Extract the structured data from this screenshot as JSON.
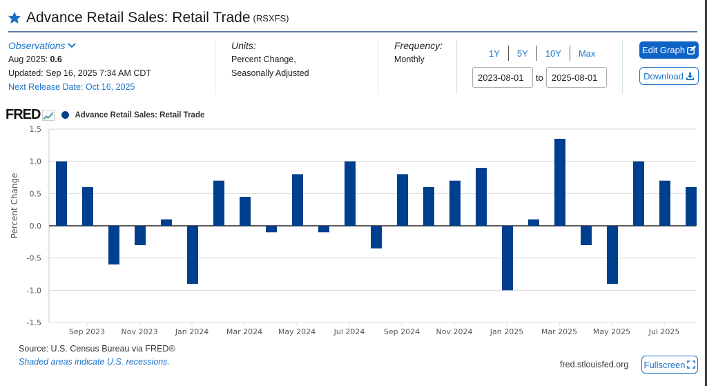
{
  "header": {
    "title": "Advance Retail Sales: Retail Trade",
    "series_id": "(RSXFS)"
  },
  "observations": {
    "title": "Observations",
    "latest_label": "Aug 2025: ",
    "latest_value": "0.6",
    "updated": "Updated: Sep 16, 2025 7:34 AM CDT",
    "next_release": "Next Release Date: Oct 16, 2025"
  },
  "units": {
    "label": "Units:",
    "line1": "Percent Change,",
    "line2": "Seasonally Adjusted"
  },
  "frequency": {
    "label": "Frequency:",
    "value": "Monthly"
  },
  "ranges": [
    "1Y",
    "5Y",
    "10Y",
    "Max"
  ],
  "dates": {
    "start": "2023-08-01",
    "to_label": "to",
    "end": "2025-08-01"
  },
  "buttons": {
    "edit_graph": "Edit Graph",
    "download": "Download",
    "fullscreen": "Fullscreen"
  },
  "chart_head": {
    "logo": "FRED",
    "legend": "Advance Retail Sales: Retail Trade"
  },
  "footer": {
    "source": "Source: U.S. Census Bureau via FRED®",
    "recessions": "Shaded areas indicate U.S. recessions.",
    "url": "fred.stlouisfed.org"
  },
  "colors": {
    "bar": "#003f8e",
    "accent": "#0f63c7",
    "link": "#1a73c9"
  },
  "chart_data": {
    "type": "bar",
    "title": "Advance Retail Sales: Retail Trade",
    "xlabel": "",
    "ylabel": "Percent Change",
    "ylim": [
      -1.5,
      1.5
    ],
    "yticks": [
      1.5,
      1.0,
      0.5,
      0.0,
      -0.5,
      -1.0,
      -1.5
    ],
    "ytick_labels": [
      "1.5",
      "1.0",
      "0.5",
      "0.0",
      "-0.5",
      "-1.0",
      "-1.5"
    ],
    "grid": true,
    "legend_position": "top-left",
    "categories": [
      "Aug 2023",
      "Sep 2023",
      "Oct 2023",
      "Nov 2023",
      "Dec 2023",
      "Jan 2024",
      "Feb 2024",
      "Mar 2024",
      "Apr 2024",
      "May 2024",
      "Jun 2024",
      "Jul 2024",
      "Aug 2024",
      "Sep 2024",
      "Oct 2024",
      "Nov 2024",
      "Dec 2024",
      "Jan 2025",
      "Feb 2025",
      "Mar 2025",
      "Apr 2025",
      "May 2025",
      "Jun 2025",
      "Jul 2025",
      "Aug 2025"
    ],
    "xtick_labels": [
      "Sep 2023",
      "Nov 2023",
      "Jan 2024",
      "Mar 2024",
      "May 2024",
      "Jul 2024",
      "Sep 2024",
      "Nov 2024",
      "Jan 2025",
      "Mar 2025",
      "May 2025",
      "Jul 2025"
    ],
    "series": [
      {
        "name": "Advance Retail Sales: Retail Trade",
        "values": [
          1.0,
          0.6,
          -0.6,
          -0.3,
          0.1,
          -0.9,
          0.7,
          0.45,
          -0.1,
          0.8,
          -0.1,
          1.0,
          -0.35,
          0.8,
          0.6,
          0.7,
          0.9,
          -1.0,
          0.1,
          1.35,
          -0.3,
          -0.9,
          1.0,
          0.7,
          0.6
        ]
      }
    ]
  }
}
